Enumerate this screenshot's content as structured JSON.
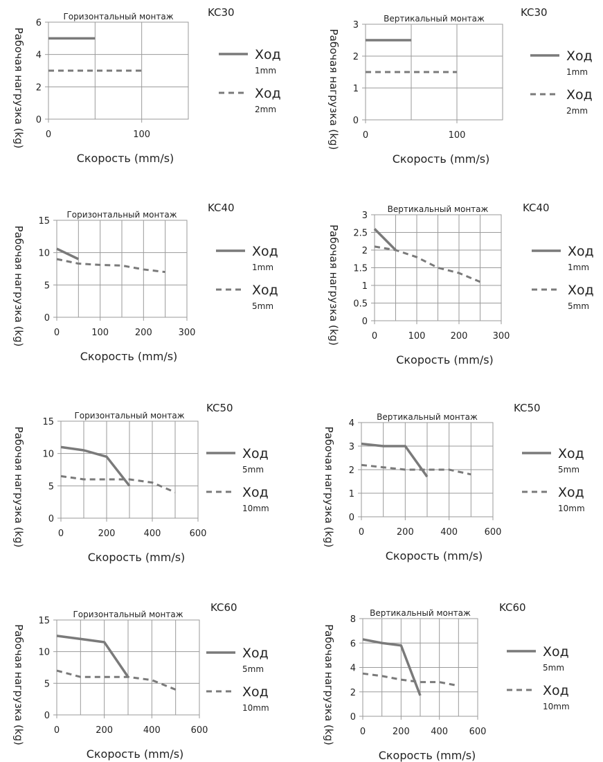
{
  "colors": {
    "series": "#7a7a7a",
    "grid": "#9a9a9a",
    "frame": "#9a9a9a",
    "text": "#222222"
  },
  "chart_data": [
    {
      "type": "line",
      "model": "KC30",
      "title": "Горизонтальный монтаж",
      "xlabel": "Скорость (mm/s)",
      "ylabel": "Рабочая нагрузка (kg)",
      "xlim": [
        0,
        150
      ],
      "xticks": [
        0,
        100
      ],
      "xgrid": [
        0,
        50,
        100,
        150
      ],
      "ylim": [
        0,
        6
      ],
      "yticks": [
        0,
        2,
        4,
        6
      ],
      "grid": true,
      "legend_position": "right",
      "series": [
        {
          "name": "Ход",
          "sub": "1mm",
          "style": "solid",
          "x": [
            0,
            50
          ],
          "y": [
            5,
            5
          ]
        },
        {
          "name": "Ход",
          "sub": "2mm",
          "style": "dashed",
          "x": [
            0,
            100
          ],
          "y": [
            3,
            3
          ]
        }
      ]
    },
    {
      "type": "line",
      "model": "KC30",
      "title": "Вертикальный монтаж",
      "xlabel": "Скорость (mm/s)",
      "ylabel": "Рабочая нагрузка (kg)",
      "xlim": [
        0,
        150
      ],
      "xticks": [
        0,
        100
      ],
      "xgrid": [
        0,
        50,
        100,
        150
      ],
      "ylim": [
        0,
        3
      ],
      "yticks": [
        0,
        1,
        2,
        3
      ],
      "grid": true,
      "legend_position": "right",
      "series": [
        {
          "name": "Ход",
          "sub": "1mm",
          "style": "solid",
          "x": [
            0,
            50
          ],
          "y": [
            2.5,
            2.5
          ]
        },
        {
          "name": "Ход",
          "sub": "2mm",
          "style": "dashed",
          "x": [
            0,
            100
          ],
          "y": [
            1.5,
            1.5
          ]
        }
      ]
    },
    {
      "type": "line",
      "model": "KC40",
      "title": "Горизонтальный монтаж",
      "xlabel": "Скорость (mm/s)",
      "ylabel": "Рабочая нагрузка (kg)",
      "xlim": [
        0,
        300
      ],
      "xticks": [
        0,
        100,
        200,
        300
      ],
      "xgrid": [
        0,
        50,
        100,
        150,
        200,
        250,
        300
      ],
      "ylim": [
        0,
        15
      ],
      "yticks": [
        0,
        5,
        10,
        15
      ],
      "grid": true,
      "legend_position": "right",
      "series": [
        {
          "name": "Ход",
          "sub": "1mm",
          "style": "solid",
          "x": [
            0,
            50
          ],
          "y": [
            10.6,
            9
          ]
        },
        {
          "name": "Ход",
          "sub": "5mm",
          "style": "dashed",
          "x": [
            0,
            50,
            100,
            150,
            200,
            250
          ],
          "y": [
            9,
            8.3,
            8.1,
            8,
            7.4,
            7
          ]
        }
      ]
    },
    {
      "type": "line",
      "model": "KC40",
      "title": "Вертикальный монтаж",
      "xlabel": "Скорость (mm/s)",
      "ylabel": "Рабочая нагрузка (kg)",
      "xlim": [
        0,
        300
      ],
      "xticks": [
        0,
        100,
        200,
        300
      ],
      "xgrid": [
        0,
        50,
        100,
        150,
        200,
        250,
        300
      ],
      "ylim": [
        0,
        3
      ],
      "yticks": [
        0,
        0.5,
        1,
        1.5,
        2,
        2.5,
        3
      ],
      "grid": true,
      "legend_position": "right",
      "series": [
        {
          "name": "Ход",
          "sub": "1mm",
          "style": "solid",
          "x": [
            0,
            50
          ],
          "y": [
            2.6,
            2.0
          ]
        },
        {
          "name": "Ход",
          "sub": "5mm",
          "style": "dashed",
          "x": [
            0,
            50,
            100,
            150,
            200,
            250
          ],
          "y": [
            2.1,
            2.0,
            1.8,
            1.5,
            1.35,
            1.1
          ]
        }
      ]
    },
    {
      "type": "line",
      "model": "KC50",
      "title": "Горизонтальный монтаж",
      "xlabel": "Скорость (mm/s)",
      "ylabel": "Рабочая нагрузка (kg)",
      "xlim": [
        0,
        600
      ],
      "xticks": [
        0,
        200,
        400,
        600
      ],
      "xgrid": [
        0,
        100,
        200,
        300,
        400,
        500,
        600
      ],
      "ylim": [
        0,
        15
      ],
      "yticks": [
        0,
        5,
        10,
        15
      ],
      "grid": true,
      "legend_position": "right",
      "series": [
        {
          "name": "Ход",
          "sub": "5mm",
          "style": "solid",
          "x": [
            0,
            100,
            200,
            300
          ],
          "y": [
            11,
            10.5,
            9.5,
            5
          ]
        },
        {
          "name": "Ход",
          "sub": "10mm",
          "style": "dashed",
          "x": [
            0,
            100,
            200,
            300,
            400,
            500
          ],
          "y": [
            6.5,
            6,
            6,
            6,
            5.5,
            4
          ]
        }
      ]
    },
    {
      "type": "line",
      "model": "KC50",
      "title": "Вертикальный монтаж",
      "xlabel": "Скорость (mm/s)",
      "ylabel": "Рабочая нагрузка (kg)",
      "xlim": [
        0,
        600
      ],
      "xticks": [
        0,
        200,
        400,
        600
      ],
      "xgrid": [
        0,
        100,
        200,
        300,
        400,
        500,
        600
      ],
      "ylim": [
        0,
        4
      ],
      "yticks": [
        0,
        1,
        2,
        3,
        4
      ],
      "grid": true,
      "legend_position": "right",
      "series": [
        {
          "name": "Ход",
          "sub": "5mm",
          "style": "solid",
          "x": [
            0,
            100,
            200,
            300
          ],
          "y": [
            3.1,
            3.0,
            3.0,
            1.7
          ]
        },
        {
          "name": "Ход",
          "sub": "10mm",
          "style": "dashed",
          "x": [
            0,
            100,
            200,
            300,
            400,
            500
          ],
          "y": [
            2.2,
            2.1,
            2.0,
            2.0,
            2.0,
            1.8
          ]
        }
      ]
    },
    {
      "type": "line",
      "model": "KC60",
      "title": "Горизонтальный монтаж",
      "xlabel": "Скорость (mm/s)",
      "ylabel": "Рабочая нагрузка (kg)",
      "xlim": [
        0,
        600
      ],
      "xticks": [
        0,
        200,
        400,
        600
      ],
      "xgrid": [
        0,
        100,
        200,
        300,
        400,
        500,
        600
      ],
      "ylim": [
        0,
        15
      ],
      "yticks": [
        0,
        5,
        10,
        15
      ],
      "grid": true,
      "legend_position": "right",
      "series": [
        {
          "name": "Ход",
          "sub": "5mm",
          "style": "solid",
          "x": [
            0,
            100,
            200,
            300
          ],
          "y": [
            12.5,
            12,
            11.5,
            6
          ]
        },
        {
          "name": "Ход",
          "sub": "10mm",
          "style": "dashed",
          "x": [
            0,
            100,
            200,
            300,
            400,
            500
          ],
          "y": [
            7,
            6,
            6,
            6,
            5.5,
            4
          ]
        }
      ]
    },
    {
      "type": "line",
      "model": "KC60",
      "title": "Вертикальный монтаж",
      "xlabel": "Скорость (mm/s)",
      "ylabel": "Рабочая нагрузка (kg)",
      "xlim": [
        0,
        600
      ],
      "xticks": [
        0,
        200,
        400,
        600
      ],
      "xgrid": [
        0,
        100,
        200,
        300,
        400,
        500,
        600
      ],
      "ylim": [
        0,
        8
      ],
      "yticks": [
        0,
        2,
        4,
        6,
        8
      ],
      "grid": true,
      "legend_position": "right",
      "series": [
        {
          "name": "Ход",
          "sub": "5mm",
          "style": "solid",
          "x": [
            0,
            100,
            200,
            300
          ],
          "y": [
            6.3,
            6.0,
            5.8,
            1.7
          ]
        },
        {
          "name": "Ход",
          "sub": "10mm",
          "style": "dashed",
          "x": [
            0,
            100,
            200,
            300,
            400,
            500
          ],
          "y": [
            3.5,
            3.3,
            3.0,
            2.8,
            2.8,
            2.5
          ]
        }
      ]
    }
  ]
}
